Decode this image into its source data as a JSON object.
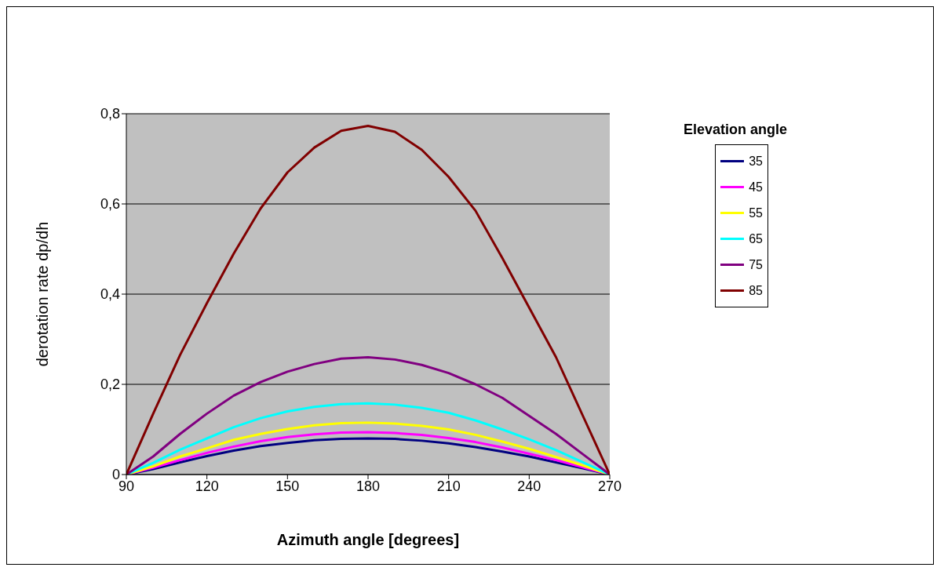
{
  "chart_data": {
    "type": "line",
    "xlabel": "Azimuth angle [degrees]",
    "ylabel": "derotation rate dp/dh",
    "legend_title": "Elevation angle",
    "x": [
      90,
      100,
      110,
      120,
      130,
      140,
      150,
      160,
      170,
      180,
      190,
      200,
      210,
      220,
      230,
      240,
      250,
      260,
      270
    ],
    "xlim": [
      90,
      270
    ],
    "xticks": [
      90,
      120,
      150,
      180,
      210,
      240,
      270
    ],
    "ylim": [
      0,
      0.8
    ],
    "yticks": [
      0,
      {
        "value": 0.2,
        "label": "0,2"
      },
      {
        "value": 0.4,
        "label": "0,4"
      },
      {
        "value": 0.6,
        "label": "0,6"
      },
      {
        "value": 0.8,
        "label": "0,8"
      }
    ],
    "grid": "y",
    "legend": "top right",
    "series": [
      {
        "name": "35",
        "color": "#000080",
        "values": [
          0,
          0.012,
          0.027,
          0.041,
          0.053,
          0.063,
          0.07,
          0.076,
          0.079,
          0.08,
          0.079,
          0.075,
          0.069,
          0.061,
          0.051,
          0.04,
          0.027,
          0.014,
          0
        ]
      },
      {
        "name": "45",
        "color": "#ff00ff",
        "values": [
          0,
          0.015,
          0.032,
          0.048,
          0.062,
          0.074,
          0.083,
          0.089,
          0.093,
          0.094,
          0.092,
          0.088,
          0.081,
          0.072,
          0.06,
          0.046,
          0.032,
          0.016,
          0
        ]
      },
      {
        "name": "55",
        "color": "#ffff00",
        "values": [
          0,
          0.018,
          0.04,
          0.058,
          0.077,
          0.09,
          0.101,
          0.109,
          0.114,
          0.115,
          0.113,
          0.108,
          0.1,
          0.088,
          0.073,
          0.057,
          0.039,
          0.02,
          0
        ]
      },
      {
        "name": "65",
        "color": "#00ffff",
        "values": [
          0,
          0.026,
          0.055,
          0.08,
          0.105,
          0.125,
          0.14,
          0.15,
          0.156,
          0.158,
          0.155,
          0.148,
          0.137,
          0.12,
          0.1,
          0.078,
          0.054,
          0.027,
          0
        ]
      },
      {
        "name": "75",
        "color": "#800080",
        "values": [
          0,
          0.04,
          0.09,
          0.135,
          0.175,
          0.205,
          0.228,
          0.245,
          0.257,
          0.26,
          0.255,
          0.243,
          0.225,
          0.2,
          0.17,
          0.13,
          0.09,
          0.045,
          0
        ]
      },
      {
        "name": "85",
        "color": "#800000",
        "values": [
          0,
          0.135,
          0.265,
          0.38,
          0.49,
          0.59,
          0.67,
          0.725,
          0.762,
          0.773,
          0.76,
          0.72,
          0.66,
          0.585,
          0.48,
          0.37,
          0.26,
          0.13,
          0
        ]
      }
    ]
  }
}
